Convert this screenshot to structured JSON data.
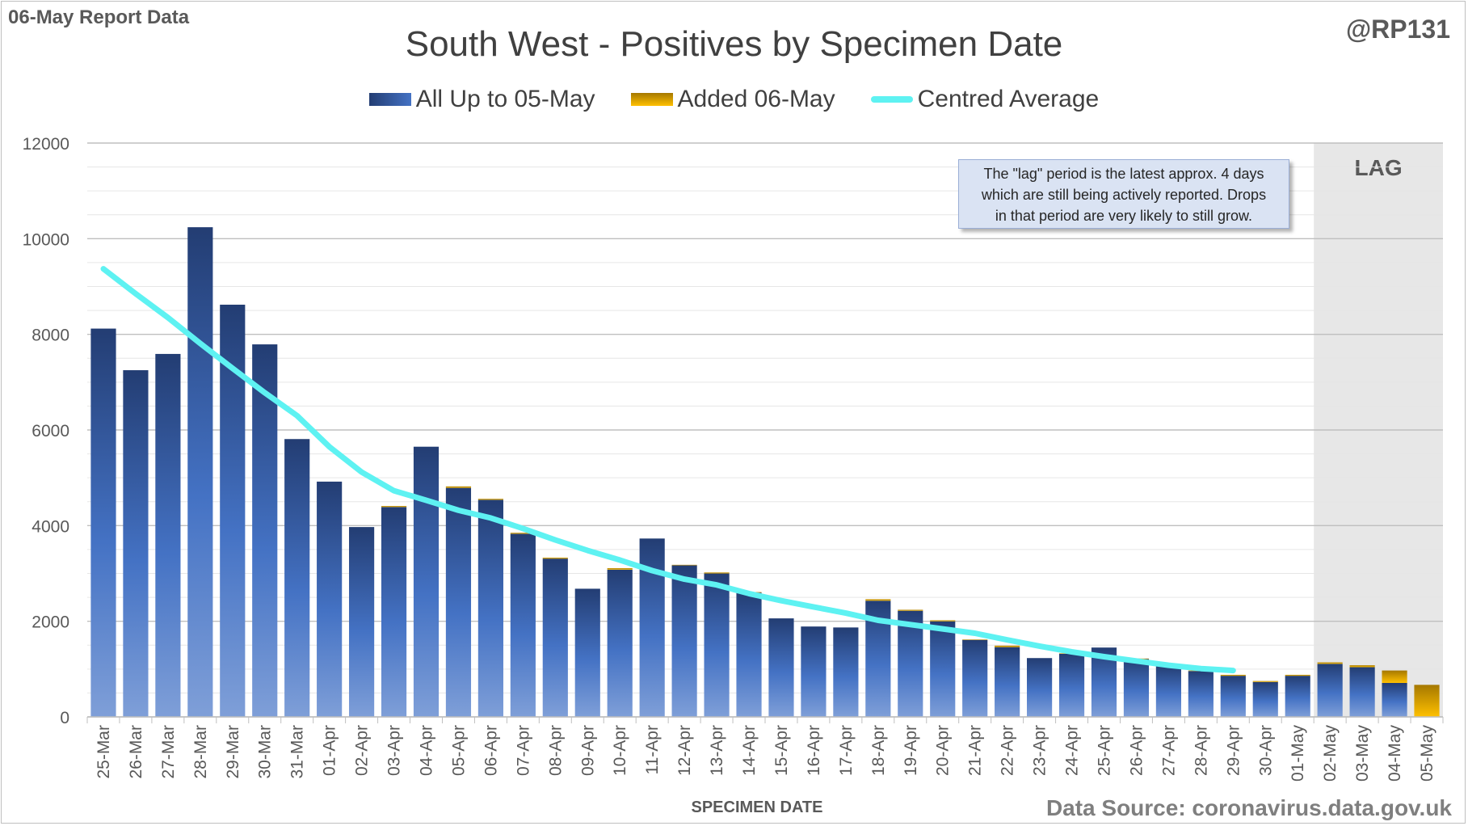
{
  "header": {
    "report_label": "06-May Report Data",
    "handle": "@RP131",
    "title": "South West - Positives by Specimen Date"
  },
  "legend": {
    "all": "All Up to 05-May",
    "added": "Added 06-May",
    "avg": "Centred Average"
  },
  "note": {
    "line1": "The \"lag\" period is the latest approx. 4 days",
    "line2": "which are still being actively reported.  Drops",
    "line3": "in that period are very likely to still grow."
  },
  "lag_label": "LAG",
  "source": "Data Source: coronavirus.data.gov.uk",
  "colors": {
    "bar_dark": "#233d73",
    "bar_light": "#7f9fd8",
    "added_dark": "#a57800",
    "added_light": "#ffc000",
    "avg_line": "#5ef2f2",
    "lag_shade": "#e7e7e7"
  },
  "chart_data": {
    "type": "bar",
    "stacked": true,
    "xlabel": "SPECIMEN DATE",
    "ylabel": "",
    "ylim": [
      0,
      12000
    ],
    "yticks": [
      0,
      2000,
      4000,
      6000,
      8000,
      10000,
      12000
    ],
    "categories": [
      "25-Mar",
      "26-Mar",
      "27-Mar",
      "28-Mar",
      "29-Mar",
      "30-Mar",
      "31-Mar",
      "01-Apr",
      "02-Apr",
      "03-Apr",
      "04-Apr",
      "05-Apr",
      "06-Apr",
      "07-Apr",
      "08-Apr",
      "09-Apr",
      "10-Apr",
      "11-Apr",
      "12-Apr",
      "13-Apr",
      "14-Apr",
      "15-Apr",
      "16-Apr",
      "17-Apr",
      "18-Apr",
      "19-Apr",
      "20-Apr",
      "21-Apr",
      "22-Apr",
      "23-Apr",
      "24-Apr",
      "25-Apr",
      "26-Apr",
      "27-Apr",
      "28-Apr",
      "29-Apr",
      "30-Apr",
      "01-May",
      "02-May",
      "03-May",
      "04-May",
      "05-May"
    ],
    "lag_start": "02-May",
    "series": [
      {
        "name": "All Up to 05-May",
        "values": [
          8120,
          7250,
          7590,
          10240,
          8620,
          7790,
          5810,
          4920,
          3970,
          4390,
          5650,
          4790,
          4540,
          3830,
          3310,
          2680,
          3080,
          3730,
          3170,
          3000,
          2600,
          2060,
          1890,
          1870,
          2430,
          2220,
          2000,
          1610,
          1460,
          1230,
          1320,
          1450,
          1210,
          1070,
          960,
          860,
          730,
          860,
          1110,
          1040,
          710,
          0
        ]
      },
      {
        "name": "Added 06-May",
        "values": [
          0,
          0,
          0,
          0,
          0,
          0,
          0,
          0,
          0,
          20,
          0,
          30,
          20,
          20,
          20,
          0,
          30,
          0,
          10,
          20,
          10,
          0,
          0,
          0,
          30,
          20,
          20,
          10,
          30,
          0,
          10,
          0,
          10,
          10,
          10,
          20,
          20,
          20,
          30,
          40,
          260,
          670
        ]
      },
      {
        "name": "Centred Average",
        "type": "line",
        "values": [
          9370,
          8850,
          8350,
          7810,
          7290,
          6780,
          6300,
          5650,
          5120,
          4730,
          4530,
          4320,
          4160,
          3940,
          3700,
          3480,
          3280,
          3060,
          2880,
          2760,
          2580,
          2430,
          2300,
          2170,
          2020,
          1930,
          1840,
          1750,
          1610,
          1480,
          1360,
          1260,
          1170,
          1080,
          1010,
          970,
          null,
          null,
          null,
          null,
          null,
          null
        ]
      }
    ]
  }
}
